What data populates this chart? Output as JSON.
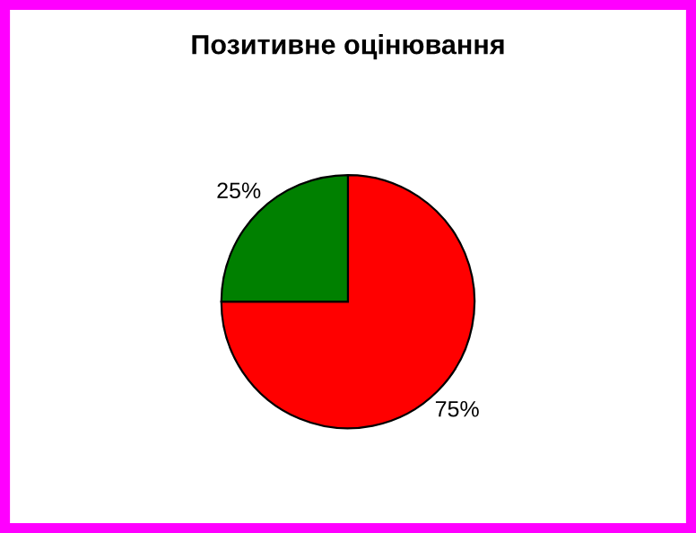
{
  "chart_data": {
    "type": "pie",
    "title": "Позитивне оцінювання",
    "categories": [
      null,
      null
    ],
    "values": [
      75,
      25
    ],
    "colors": [
      "#ff0000",
      "#008000"
    ],
    "value_labels": [
      "75%",
      "25%"
    ]
  }
}
